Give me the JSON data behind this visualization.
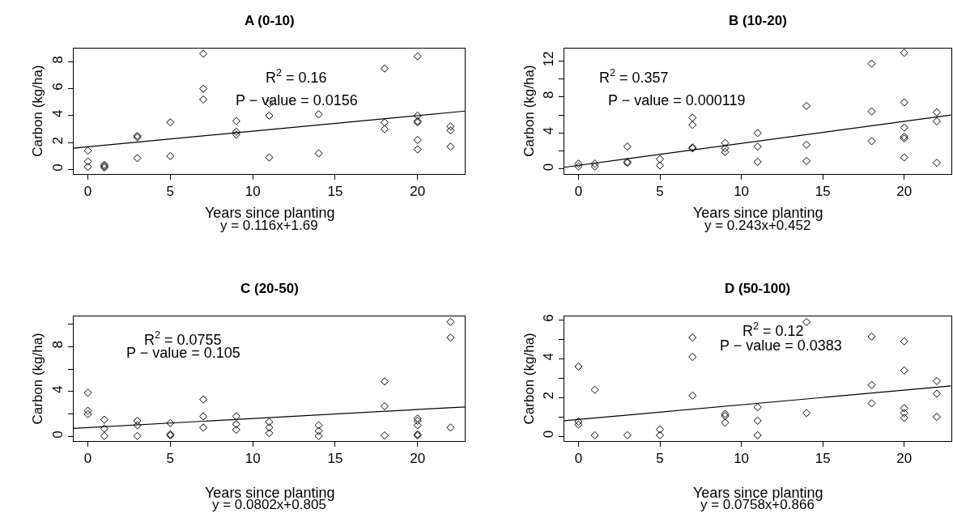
{
  "chart_data": [
    {
      "type": "scatter",
      "title": "A (0-10)",
      "xlabel": "Years since planting",
      "ylabel": "Carbon (kg/ha)",
      "xlim": [
        -0.88,
        22.88
      ],
      "ylim": [
        -0.3,
        9.0
      ],
      "xticks": [
        0,
        5,
        10,
        15,
        20
      ],
      "yticks": [
        0,
        2,
        4,
        6,
        8
      ],
      "annotations": [
        "R$^{2}$ = 0.16",
        "P − value = 0.0156",
        "y = 0.116x+1.69"
      ],
      "series": [
        {
          "marker": "diamond",
          "color": "#000000",
          "x": [
            0,
            0,
            0,
            1,
            1,
            1,
            3,
            3,
            3,
            5,
            5,
            7,
            7,
            7,
            9,
            9,
            9,
            11,
            11,
            11,
            14,
            14,
            18,
            18,
            18,
            20,
            20,
            20,
            20,
            20,
            20,
            22,
            22,
            22
          ],
          "values": [
            1.4,
            0.6,
            0.2,
            0.35,
            0.25,
            0.15,
            2.5,
            2.4,
            0.85,
            3.5,
            1.0,
            8.6,
            6.0,
            5.2,
            3.6,
            2.8,
            2.6,
            4.9,
            4.0,
            0.9,
            4.1,
            1.2,
            7.5,
            3.5,
            3.0,
            8.4,
            4.0,
            3.6,
            3.5,
            2.2,
            1.5,
            3.2,
            2.9,
            1.7
          ]
        },
        {
          "type": "line",
          "color": "#000000",
          "x": [
            -0.88,
            22.88
          ],
          "values": [
            1.59,
            4.34
          ]
        }
      ]
    },
    {
      "type": "scatter",
      "title": "B (10-20)",
      "xlabel": "Years since planting",
      "ylabel": "Carbon (kg/ha)",
      "xlim": [
        -0.88,
        22.88
      ],
      "ylim": [
        -0.5,
        13.4
      ],
      "xticks": [
        0,
        5,
        10,
        15,
        20
      ],
      "yticks": [
        0,
        {
          "value": 2,
          "label": null
        },
        4,
        {
          "value": 6,
          "label": null
        },
        8,
        {
          "value": 10,
          "label": null
        },
        12
      ],
      "annotations": [
        "R$^{2}$ = 0.357",
        "P − value = 0.000119",
        "y = 0.243x+0.452"
      ],
      "series": [
        {
          "marker": "diamond",
          "color": "#000000",
          "x": [
            0,
            0,
            1,
            1,
            3,
            3,
            3,
            5,
            5,
            7,
            7,
            7,
            7,
            9,
            9,
            9,
            11,
            11,
            11,
            14,
            14,
            14,
            18,
            18,
            18,
            20,
            20,
            20,
            20,
            20,
            20,
            22,
            22,
            22
          ],
          "values": [
            0.6,
            0.3,
            0.6,
            0.3,
            2.5,
            0.8,
            0.7,
            1.1,
            0.4,
            5.7,
            4.9,
            2.4,
            2.3,
            2.9,
            2.3,
            1.9,
            4.0,
            2.5,
            0.8,
            7.0,
            2.7,
            0.9,
            11.7,
            6.4,
            3.1,
            12.9,
            7.4,
            4.6,
            3.6,
            3.4,
            1.3,
            6.3,
            5.3,
            0.7
          ]
        },
        {
          "type": "line",
          "color": "#000000",
          "x": [
            -0.88,
            22.88
          ],
          "values": [
            0.2,
            6.0
          ]
        }
      ]
    },
    {
      "type": "scatter",
      "title": "C (20-50)",
      "xlabel": "Years since planting",
      "ylabel": "Carbon (kg/ha)",
      "xlim": [
        -0.88,
        22.88
      ],
      "ylim": [
        -0.4,
        10.7
      ],
      "xticks": [
        0,
        5,
        10,
        15,
        20
      ],
      "yticks": [
        0,
        {
          "value": 2,
          "label": null
        },
        4,
        {
          "value": 6,
          "label": null
        },
        8,
        {
          "value": 10,
          "label": null
        }
      ],
      "annotations": [
        "R$^{2}$ = 0.0755",
        "P − value = 0.105",
        "y = 0.0802x+0.805"
      ],
      "series": [
        {
          "marker": "diamond",
          "color": "#000000",
          "x": [
            0,
            0,
            0,
            1,
            1,
            1,
            3,
            3,
            3,
            5,
            5,
            5,
            7,
            7,
            7,
            9,
            9,
            9,
            11,
            11,
            11,
            14,
            14,
            14,
            18,
            18,
            18,
            20,
            20,
            20,
            20,
            20,
            22,
            22,
            22
          ],
          "values": [
            3.9,
            2.3,
            2.0,
            1.5,
            0.7,
            0.05,
            1.4,
            1.0,
            0.05,
            1.2,
            0.2,
            0.1,
            3.3,
            1.8,
            0.8,
            1.8,
            1.1,
            0.6,
            1.3,
            0.8,
            0.3,
            1.0,
            0.5,
            0.05,
            4.9,
            2.7,
            0.1,
            1.6,
            1.4,
            1.0,
            0.2,
            0.1,
            10.2,
            8.8,
            0.8
          ]
        },
        {
          "type": "line",
          "color": "#000000",
          "x": [
            -0.88,
            22.88
          ],
          "values": [
            0.73,
            2.64
          ]
        }
      ]
    },
    {
      "type": "scatter",
      "title": "D (50-100)",
      "xlabel": "Years since planting",
      "ylabel": "Carbon (kg/ha)",
      "xlim": [
        -0.88,
        22.88
      ],
      "ylim": [
        -0.25,
        6.2
      ],
      "xticks": [
        0,
        5,
        10,
        15,
        20
      ],
      "yticks": [
        0,
        {
          "value": 1,
          "label": null
        },
        2,
        {
          "value": 3,
          "label": null
        },
        4,
        {
          "value": 5,
          "label": null
        },
        6
      ],
      "annotations": [
        "R$^{2}$ = 0.12",
        "P − value = 0.0383",
        "y = 0.0758x+0.866"
      ],
      "series": [
        {
          "marker": "diamond",
          "color": "#000000",
          "x": [
            0,
            0,
            0,
            1,
            1,
            3,
            5,
            5,
            7,
            7,
            7,
            9,
            9,
            9,
            11,
            11,
            11,
            14,
            14,
            18,
            18,
            18,
            20,
            20,
            20,
            20,
            20,
            22,
            22,
            22
          ],
          "values": [
            3.6,
            0.75,
            0.6,
            2.4,
            0.05,
            0.05,
            0.35,
            0.05,
            5.1,
            4.1,
            2.1,
            1.15,
            1.05,
            0.7,
            1.5,
            0.8,
            0.05,
            5.9,
            1.2,
            5.15,
            2.65,
            1.7,
            4.9,
            3.4,
            1.45,
            1.2,
            0.95,
            2.85,
            2.2,
            1.0
          ]
        },
        {
          "type": "line",
          "color": "#000000",
          "x": [
            -0.88,
            22.88
          ],
          "values": [
            0.8,
            2.6
          ]
        }
      ]
    }
  ]
}
